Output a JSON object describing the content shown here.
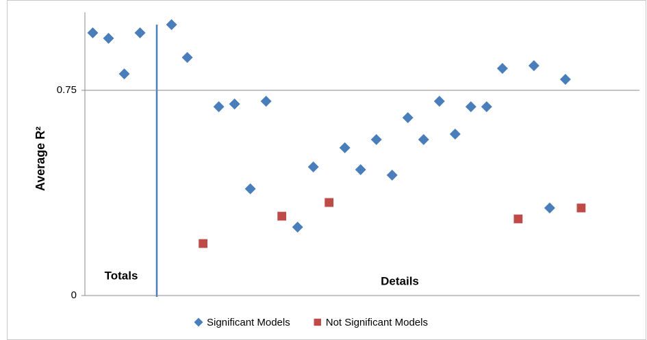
{
  "chart_data": {
    "type": "scatter",
    "y_label": "Average R²",
    "annotations": [
      "Totals",
      "Details"
    ],
    "xlim": [
      0.5,
      35.7
    ],
    "ylim": [
      0,
      1
    ],
    "yticks": [
      0,
      0.75
    ],
    "grid": true,
    "legend": "bottom",
    "series": [
      {
        "name": "Significant Models",
        "color": "#4a7ebb",
        "marker": "diamond",
        "x": [
          1,
          2,
          3,
          4,
          6,
          7,
          9,
          10,
          11,
          12,
          14,
          15,
          17,
          18,
          19,
          20,
          21,
          22,
          23,
          24,
          25,
          26,
          27,
          29,
          30,
          31
        ],
        "values": [
          0.96,
          0.94,
          0.81,
          0.96,
          0.99,
          0.87,
          0.69,
          0.7,
          0.39,
          0.71,
          0.25,
          0.47,
          0.54,
          0.46,
          0.57,
          0.44,
          0.65,
          0.57,
          0.71,
          0.59,
          0.69,
          0.69,
          0.83,
          0.84,
          0.32,
          0.79
        ]
      },
      {
        "name": "Not Significant Models",
        "color": "#be4b48",
        "marker": "square",
        "x": [
          8,
          13,
          16,
          28,
          32
        ],
        "values": [
          0.19,
          0.29,
          0.34,
          0.28,
          0.32
        ]
      }
    ]
  }
}
